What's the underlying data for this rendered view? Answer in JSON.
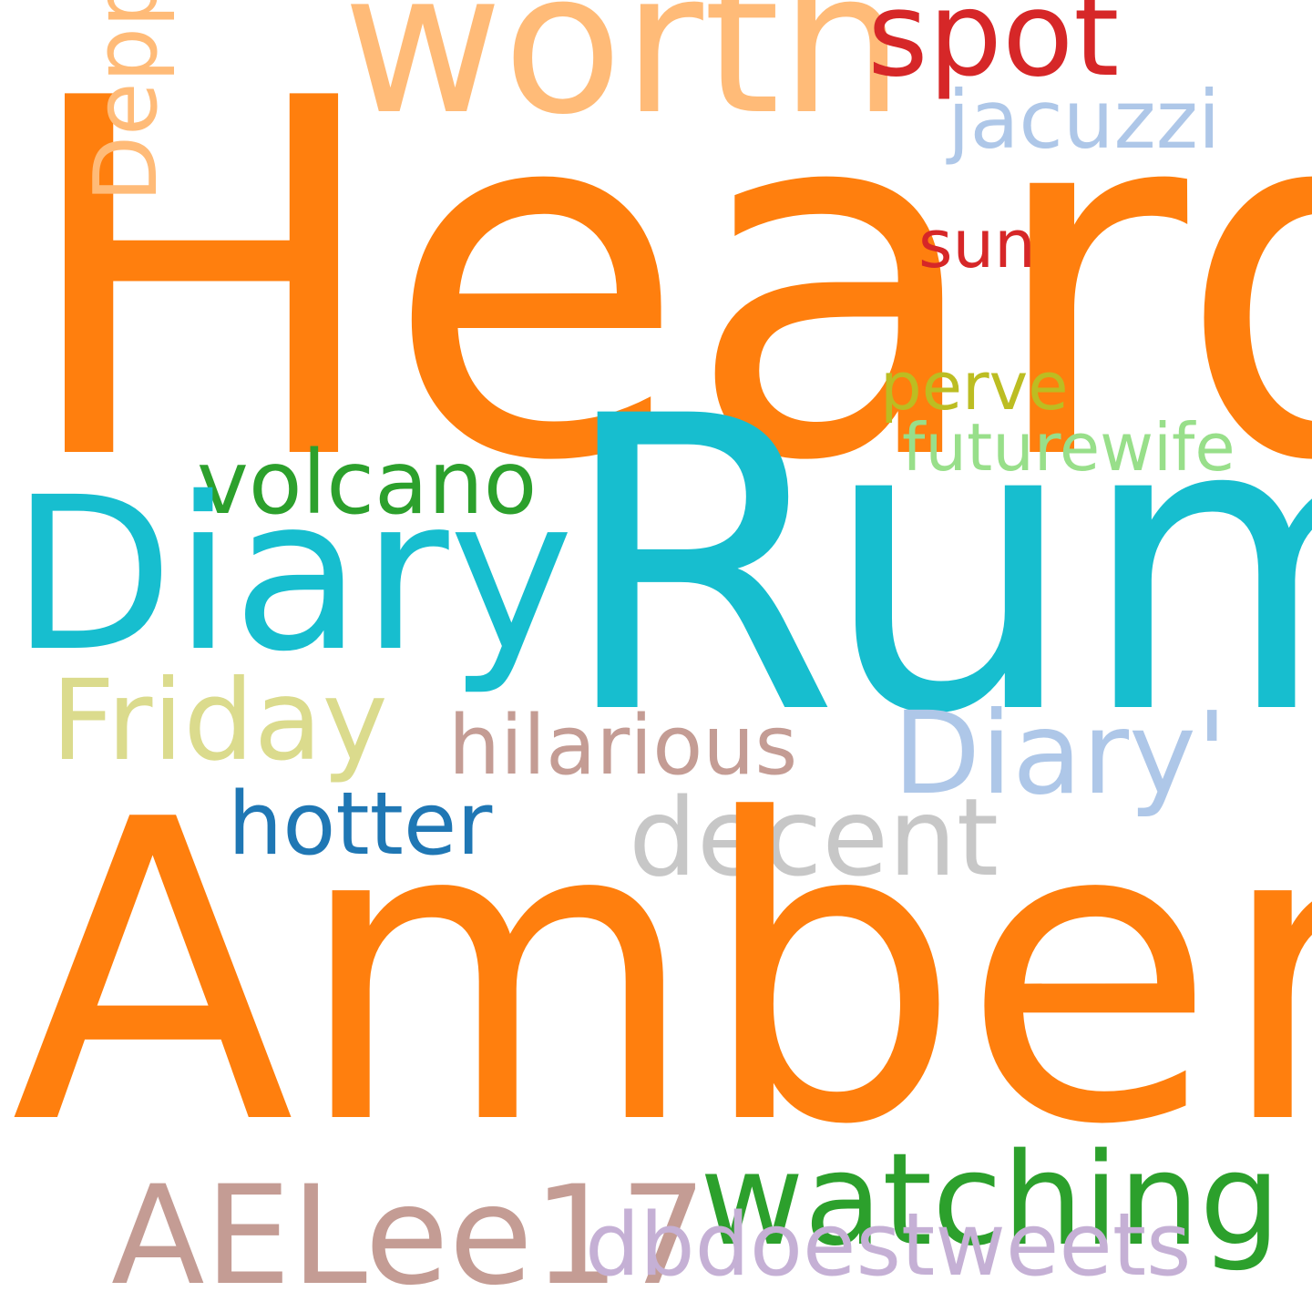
{
  "words": {
    "heard": {
      "text": "Heard",
      "color": "#ff7f0e"
    },
    "rum": {
      "text": "Rum",
      "color": "#17becf"
    },
    "amber": {
      "text": "Amber",
      "color": "#ff7f0e"
    },
    "diary": {
      "text": "Diary",
      "color": "#17becf"
    },
    "worth": {
      "text": "worth",
      "color": "#ffbb78"
    },
    "spot": {
      "text": "spot",
      "color": "#d62728"
    },
    "depp": {
      "text": "Depp",
      "color": "#ffbb78"
    },
    "jacuzzi": {
      "text": "jacuzzi",
      "color": "#aec7e8"
    },
    "sun": {
      "text": "sun",
      "color": "#d62728"
    },
    "perve": {
      "text": "perve",
      "color": "#bcbd22"
    },
    "futurewife": {
      "text": "futurewife",
      "color": "#98df8a"
    },
    "volcano": {
      "text": "volcano",
      "color": "#2ca02c"
    },
    "friday": {
      "text": "Friday",
      "color": "#dbdb8d"
    },
    "hilarious": {
      "text": "hilarious",
      "color": "#c49c94"
    },
    "diary2": {
      "text": "Diary'",
      "color": "#aec7e8"
    },
    "decent": {
      "text": "decent",
      "color": "#c7c7c7"
    },
    "hotter": {
      "text": "hotter",
      "color": "#1f77b4"
    },
    "watching": {
      "text": "watching",
      "color": "#2ca02c"
    },
    "aelee17": {
      "text": "AELee17",
      "color": "#c49c94"
    },
    "dbdoes": {
      "text": "dbdoestweets",
      "color": "#c5b0d5"
    }
  }
}
